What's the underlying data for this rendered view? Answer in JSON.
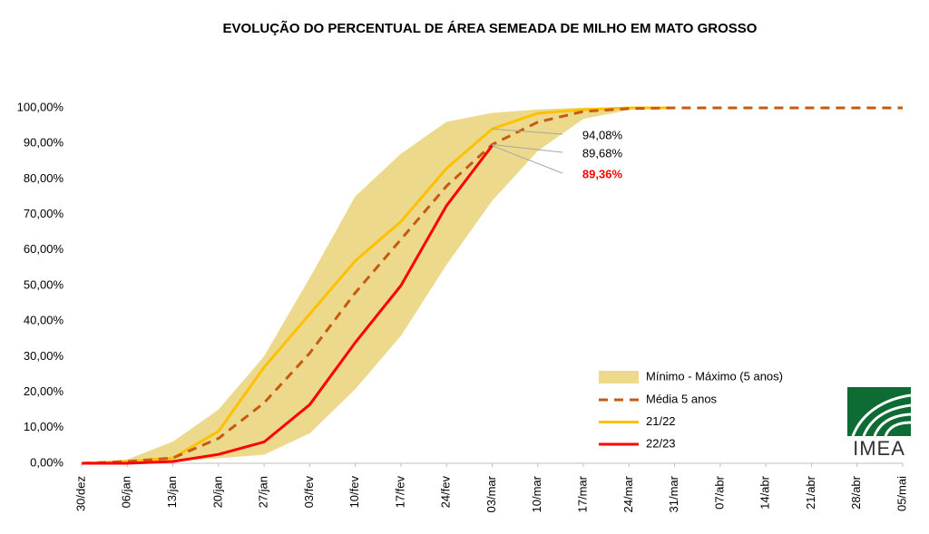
{
  "chart_data": {
    "type": "line",
    "title": "EVOLUÇÃO DO PERCENTUAL DE ÁREA SEMEADA DE MILHO EM MATO GROSSO",
    "categories": [
      "30/dez",
      "06/jan",
      "13/jan",
      "20/jan",
      "27/jan",
      "03/fev",
      "10/fev",
      "17/fev",
      "24/fev",
      "03/mar",
      "10/mar",
      "17/mar",
      "24/mar",
      "31/mar",
      "07/abr",
      "14/abr",
      "21/abr",
      "28/abr",
      "05/mai"
    ],
    "ylim": [
      0,
      100
    ],
    "yticks": [
      {
        "value": 0,
        "label": "0,00%"
      },
      {
        "value": 10,
        "label": "10,00%"
      },
      {
        "value": 20,
        "label": "20,00%"
      },
      {
        "value": 30,
        "label": "30,00%"
      },
      {
        "value": 40,
        "label": "40,00%"
      },
      {
        "value": 50,
        "label": "50,00%"
      },
      {
        "value": 60,
        "label": "60,00%"
      },
      {
        "value": 70,
        "label": "70,00%"
      },
      {
        "value": 80,
        "label": "80,00%"
      },
      {
        "value": 90,
        "label": "90,00%"
      },
      {
        "value": 100,
        "label": "100,00%"
      }
    ],
    "band": {
      "name": "Mínimo - Máximo (5 anos)",
      "color": "#ecd98c",
      "min": [
        0,
        0,
        0.5,
        1.5,
        2.5,
        8.5,
        21,
        36,
        56,
        74,
        88,
        97,
        99.5,
        100,
        null,
        null,
        null,
        null,
        null
      ],
      "max": [
        0,
        1,
        6,
        15,
        30,
        52,
        75,
        87,
        96,
        98.5,
        99.5,
        100,
        100,
        100,
        null,
        null,
        null,
        null,
        null
      ]
    },
    "series": [
      {
        "name": "Média 5 anos",
        "color": "#c55a11",
        "dashed": true,
        "values": [
          0,
          0.5,
          1.5,
          7,
          17,
          31,
          48,
          63,
          78,
          89.68,
          96,
          99,
          99.8,
          100,
          100,
          100,
          100,
          100,
          100
        ],
        "value_labels": [
          null,
          null,
          null,
          null,
          null,
          null,
          null,
          null,
          null,
          "89,68%",
          null,
          null,
          null,
          null,
          null,
          null,
          null,
          null,
          null
        ]
      },
      {
        "name": "21/22",
        "color": "#ffc000",
        "dashed": false,
        "values": [
          0,
          0.5,
          1.5,
          9,
          27,
          42,
          57,
          68,
          83,
          94.08,
          98.5,
          99.5,
          100,
          100,
          null,
          null,
          null,
          null,
          null
        ],
        "value_labels": [
          null,
          null,
          null,
          null,
          null,
          null,
          null,
          null,
          null,
          "94,08%",
          null,
          null,
          null,
          null,
          null,
          null,
          null,
          null,
          null
        ]
      },
      {
        "name": "22/23",
        "color": "#ff0000",
        "dashed": false,
        "values": [
          0,
          0,
          0.5,
          2.5,
          6,
          16.5,
          34,
          50,
          72.5,
          89.36,
          null,
          null,
          null,
          null,
          null,
          null,
          null,
          null,
          null
        ],
        "value_labels": [
          null,
          null,
          null,
          null,
          null,
          null,
          null,
          null,
          null,
          "89,36%",
          null,
          null,
          null,
          null,
          null,
          null,
          null,
          null,
          null
        ]
      }
    ]
  },
  "logo_text": "IMEA"
}
